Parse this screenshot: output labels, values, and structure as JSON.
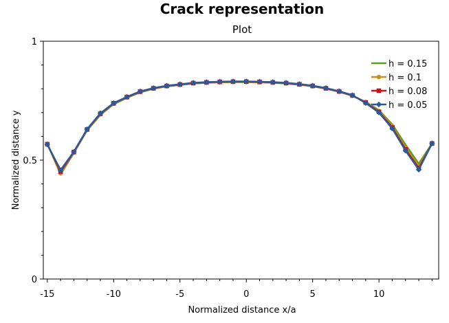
{
  "chart_data": {
    "type": "line",
    "title": "Crack representation",
    "subtitle": "Plot",
    "xlabel": "Normalized distance x/a",
    "ylabel": "Normalized distance y",
    "xlim": [
      -15.3,
      14.5
    ],
    "ylim": [
      0,
      1
    ],
    "xticks": [
      -15,
      -10,
      -5,
      0,
      5,
      10
    ],
    "yticks": [
      0,
      0.5,
      1
    ],
    "yticks_labels": [
      "0",
      "0.5",
      "1"
    ],
    "xticks_labels": [
      "-15",
      "-10",
      "-5",
      "0",
      "5",
      "10"
    ],
    "grid": false,
    "legend_position": "top-right",
    "x": [
      -15,
      -14,
      -13,
      -12,
      -11,
      -10,
      -9,
      -8,
      -7,
      -6,
      -5,
      -4,
      -3,
      -2,
      -1,
      0,
      1,
      2,
      3,
      4,
      5,
      6,
      7,
      8,
      9,
      10,
      11,
      12,
      13,
      14
    ],
    "series": [
      {
        "name": "h = 0.15",
        "color": "#5a9e1c",
        "marker": "none",
        "values": [
          0.57,
          0.44,
          0.53,
          0.625,
          0.69,
          0.735,
          0.762,
          0.785,
          0.8,
          0.81,
          0.816,
          0.822,
          0.825,
          0.827,
          0.828,
          0.828,
          0.827,
          0.825,
          0.822,
          0.817,
          0.81,
          0.8,
          0.787,
          0.77,
          0.745,
          0.71,
          0.65,
          0.565,
          0.485,
          0.57
        ]
      },
      {
        "name": "h = 0.1",
        "color": "#c8901a",
        "marker": "circle",
        "values": [
          0.568,
          0.445,
          0.532,
          0.627,
          0.693,
          0.737,
          0.764,
          0.787,
          0.801,
          0.811,
          0.817,
          0.823,
          0.826,
          0.828,
          0.829,
          0.829,
          0.828,
          0.826,
          0.823,
          0.818,
          0.811,
          0.801,
          0.788,
          0.771,
          0.744,
          0.706,
          0.643,
          0.552,
          0.474,
          0.569
        ]
      },
      {
        "name": "h = 0.08",
        "color": "#c8101a",
        "marker": "square",
        "values": [
          0.567,
          0.452,
          0.534,
          0.629,
          0.695,
          0.739,
          0.765,
          0.788,
          0.802,
          0.812,
          0.818,
          0.824,
          0.827,
          0.829,
          0.83,
          0.83,
          0.829,
          0.827,
          0.824,
          0.819,
          0.812,
          0.802,
          0.789,
          0.772,
          0.742,
          0.703,
          0.637,
          0.545,
          0.466,
          0.57
        ]
      },
      {
        "name": "h = 0.05",
        "color": "#2a5a9a",
        "marker": "diamond",
        "values": [
          0.566,
          0.458,
          0.535,
          0.63,
          0.697,
          0.74,
          0.766,
          0.789,
          0.803,
          0.813,
          0.819,
          0.825,
          0.828,
          0.83,
          0.831,
          0.831,
          0.83,
          0.828,
          0.825,
          0.82,
          0.813,
          0.803,
          0.79,
          0.773,
          0.74,
          0.7,
          0.633,
          0.54,
          0.46,
          0.571
        ]
      }
    ]
  }
}
